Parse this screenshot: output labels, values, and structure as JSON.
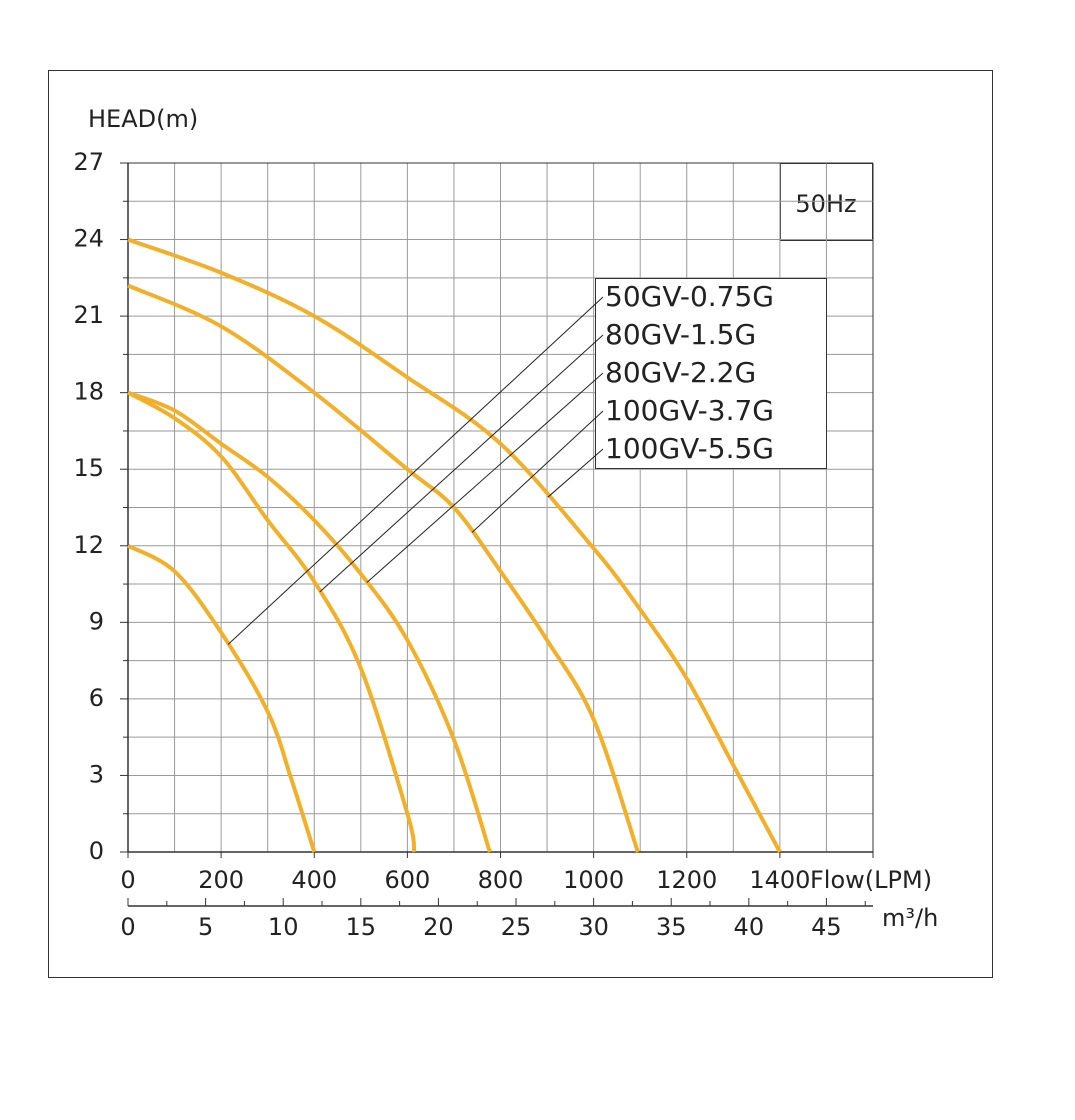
{
  "chart_data": {
    "type": "line",
    "y_label": "HEAD(m)",
    "x_label": "Flow(LPM)",
    "x2_label": "m³/h",
    "annotation": "50Hz",
    "xlim": [
      0,
      1600
    ],
    "xticks": [
      0,
      200,
      400,
      600,
      800,
      1000,
      1200,
      1400
    ],
    "x2lim": [
      0,
      48
    ],
    "x2ticks": [
      0,
      5,
      10,
      15,
      20,
      25,
      30,
      35,
      40,
      45
    ],
    "ylim": [
      0,
      27
    ],
    "yticks": [
      0,
      3,
      6,
      9,
      12,
      15,
      18,
      21,
      24,
      27
    ],
    "grid": true,
    "series": [
      {
        "name": "50GV-0.75G",
        "color": "#f2b02a",
        "x": [
          0,
          100,
          200,
          300,
          350,
          400
        ],
        "values": [
          12,
          11,
          8.6,
          5.5,
          2.9,
          0
        ]
      },
      {
        "name": "80GV-1.5G",
        "color": "#f2b02a",
        "x": [
          0,
          100,
          200,
          300,
          400,
          500,
          600,
          615
        ],
        "values": [
          18,
          17,
          15.5,
          13,
          10.6,
          7.2,
          1.5,
          0
        ]
      },
      {
        "name": "80GV-2.2G",
        "color": "#f2b02a",
        "x": [
          0,
          100,
          200,
          300,
          400,
          500,
          600,
          700,
          777
        ],
        "values": [
          18,
          17.3,
          16,
          14.7,
          13,
          10.9,
          8.3,
          4.4,
          0
        ]
      },
      {
        "name": "100GV-3.7G",
        "color": "#f2b02a",
        "x": [
          0,
          200,
          400,
          600,
          700,
          800,
          900,
          1000,
          1095
        ],
        "values": [
          22.2,
          20.6,
          18,
          15,
          13.5,
          11,
          8.3,
          5.2,
          0
        ]
      },
      {
        "name": "100GV-5.5G",
        "color": "#f2b02a",
        "x": [
          0,
          200,
          400,
          600,
          800,
          1000,
          1100,
          1200,
          1300,
          1400
        ],
        "values": [
          24,
          22.7,
          21,
          18.6,
          16,
          11.9,
          9.5,
          6.8,
          3.4,
          0
        ]
      }
    ]
  }
}
